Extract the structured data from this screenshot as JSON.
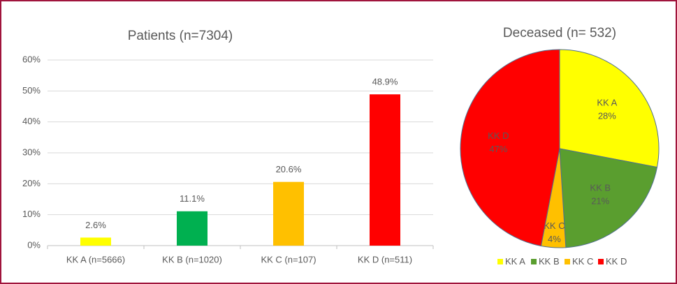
{
  "chart_data": [
    {
      "type": "bar",
      "title": "Patients (n=7304)",
      "categories": [
        "KK A (n=5666)",
        "KK B (n=1020)",
        "KK C (n=107)",
        "KK D (n=511)"
      ],
      "values": [
        2.6,
        11.1,
        20.6,
        48.9
      ],
      "value_labels": [
        "2.6%",
        "11.1%",
        "20.6%",
        "48.9%"
      ],
      "colors": [
        "#ffff00",
        "#00b050",
        "#ffc000",
        "#ff0000"
      ],
      "ylim": [
        0,
        60
      ],
      "yticks": [
        {
          "value": 0,
          "label": "0%"
        },
        {
          "value": 10,
          "label": "10%"
        },
        {
          "value": 20,
          "label": "20%"
        },
        {
          "value": 30,
          "label": "30%"
        },
        {
          "value": 40,
          "label": "40%"
        },
        {
          "value": 50,
          "label": "50%"
        },
        {
          "value": 60,
          "label": "60%"
        }
      ],
      "grid": true
    },
    {
      "type": "pie",
      "title": "Deceased (n= 532)",
      "categories": [
        "KK A",
        "KK B",
        "KK C",
        "KK D"
      ],
      "values": [
        28,
        21,
        4,
        47
      ],
      "value_labels": [
        "28%",
        "21%",
        "4%",
        "47%"
      ],
      "colors": [
        "#ffff00",
        "#5a9e2f",
        "#ffc000",
        "#ff0000"
      ],
      "legend": "bottom"
    }
  ]
}
